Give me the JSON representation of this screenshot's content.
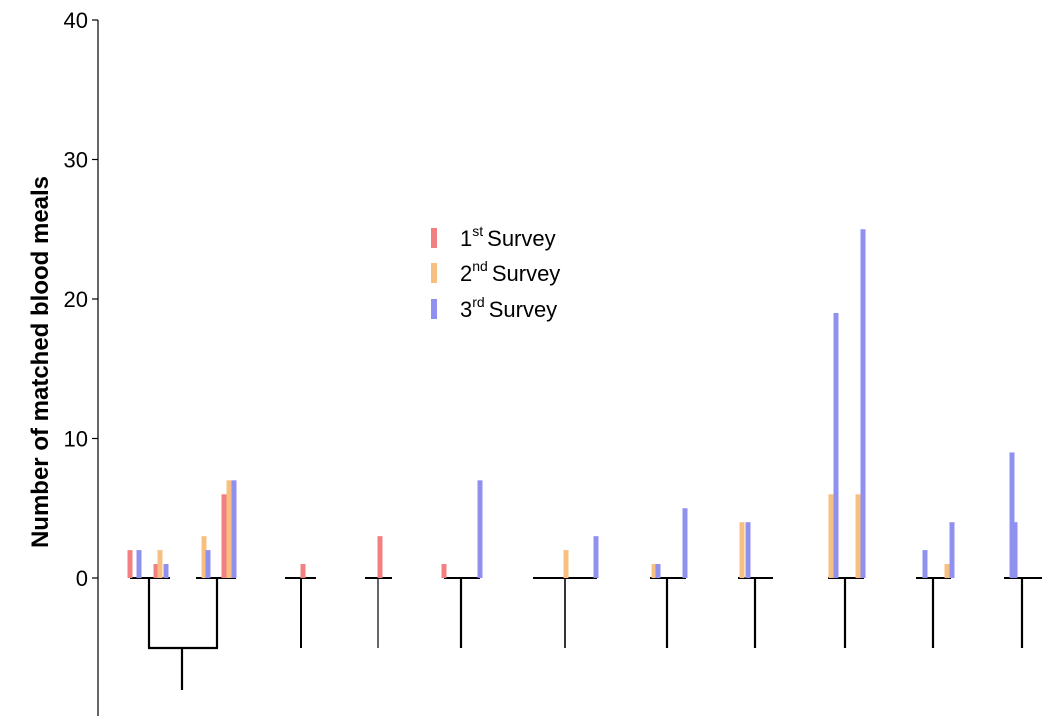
{
  "chart_data": {
    "type": "bar",
    "ylabel": "Number of matched blood meals",
    "ylim": [
      0,
      40
    ],
    "yticks": [
      "0",
      "10",
      "20",
      "30",
      "40"
    ],
    "grid": false,
    "legend_position": "center",
    "series": [
      {
        "name": "Survey",
        "ordinal": "1",
        "suffix": "st",
        "color": "#f28080"
      },
      {
        "name": "Survey",
        "ordinal": "2",
        "suffix": "nd",
        "color": "#f8c080"
      },
      {
        "name": "Survey",
        "ordinal": "3",
        "suffix": "rd",
        "color": "#9090f0"
      }
    ],
    "groups": [
      {
        "members": [
          [
            2,
            0,
            2
          ],
          [
            1,
            2,
            1
          ],
          [
            0,
            3,
            2
          ],
          [
            6,
            7,
            7
          ]
        ]
      },
      {
        "members": [
          [
            1,
            0,
            0
          ]
        ]
      },
      {
        "members": [
          [
            3,
            0,
            0
          ]
        ]
      },
      {
        "members": [
          [
            1,
            0,
            0
          ],
          [
            0,
            0,
            7
          ]
        ]
      },
      {
        "members": [
          [
            0,
            2,
            0
          ],
          [
            0,
            0,
            3
          ]
        ]
      },
      {
        "members": [
          [
            0,
            1,
            1
          ],
          [
            0,
            0,
            5
          ]
        ]
      },
      {
        "members": [
          [
            0,
            4,
            4
          ]
        ]
      },
      {
        "members": [
          [
            0,
            6,
            19
          ],
          [
            0,
            6,
            25
          ]
        ]
      },
      {
        "members": [
          [
            0,
            0,
            2
          ],
          [
            0,
            1,
            4
          ]
        ]
      },
      {
        "members": [
          [
            0,
            0,
            4
          ],
          [
            0,
            0,
            9
          ]
        ]
      }
    ]
  }
}
